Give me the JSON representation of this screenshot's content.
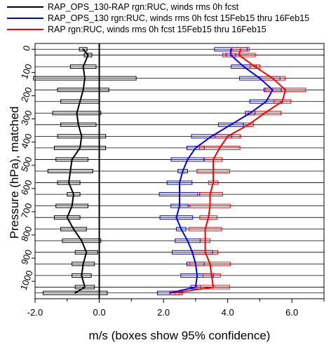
{
  "chart_data": {
    "type": "line",
    "orientation": "vertical-profile",
    "xlabel": "m/s (boxes show 95% confidence)",
    "ylabel": "Pressure (hPa), matched",
    "xlim": [
      -2.0,
      7.0
    ],
    "ylim": [
      1075,
      -25
    ],
    "x_ticks": [
      -2.0,
      0.0,
      2.0,
      4.0,
      6.0
    ],
    "x_tick_labels": [
      "-2.0",
      "0.0",
      "2.0",
      "4.0",
      "6.0"
    ],
    "y_ticks": [
      0,
      100,
      200,
      300,
      400,
      500,
      600,
      700,
      800,
      900,
      1000
    ],
    "y_tick_labels": [
      "0",
      "100",
      "200",
      "300",
      "400",
      "500",
      "600",
      "700",
      "800",
      "900",
      "1000"
    ],
    "pressure_levels": [
      0,
      25,
      75,
      125,
      175,
      225,
      275,
      325,
      375,
      425,
      475,
      525,
      575,
      625,
      675,
      725,
      775,
      825,
      875,
      925,
      975,
      1025,
      1050
    ],
    "reference_line_x": 0.0,
    "series": [
      {
        "name": "RAP_OPS_130-RAP rgn:RUC, winds rms 0h fcst",
        "color": "#000000",
        "values": [
          -0.5,
          -0.35,
          -0.5,
          -0.45,
          -0.5,
          -0.6,
          -0.7,
          -0.65,
          -0.55,
          -0.6,
          -0.85,
          -0.9,
          -0.95,
          -0.8,
          -0.85,
          -1.0,
          -0.8,
          -0.55,
          -0.4,
          -0.5,
          -0.55,
          -0.45,
          -0.75
        ],
        "ci_half": [
          0.12,
          0.12,
          0.4,
          1.6,
          0.8,
          0.6,
          0.75,
          0.55,
          0.75,
          0.8,
          0.5,
          0.7,
          0.35,
          0.2,
          0.5,
          0.4,
          0.4,
          0.6,
          0.35,
          0.35,
          0.3,
          0.3,
          1.0
        ]
      },
      {
        "name": "RAP_OPS_130 rgn:RUC, winds rms 0h fcst  15Feb15 thru 16Feb15",
        "color": "#0000ff",
        "values": [
          4.1,
          4.1,
          4.5,
          5.0,
          5.4,
          5.2,
          4.7,
          4.1,
          3.5,
          3.0,
          2.75,
          2.6,
          2.5,
          2.5,
          2.5,
          2.4,
          2.55,
          2.75,
          2.9,
          3.0,
          3.05,
          3.0,
          2.2
        ]
      },
      {
        "name": "RAP rgn:RUC, winds rms 0h fcst  15Feb15 thru 16Feb15",
        "color": "#ff0000",
        "values": [
          4.4,
          4.35,
          4.85,
          5.4,
          5.8,
          5.7,
          5.15,
          4.65,
          4.0,
          3.75,
          3.55,
          3.55,
          3.55,
          3.45,
          3.45,
          3.4,
          3.3,
          3.3,
          3.3,
          3.45,
          3.5,
          3.55,
          2.35
        ]
      }
    ],
    "legend_placement": "top-left",
    "grid": "horizontal lines at each level"
  }
}
